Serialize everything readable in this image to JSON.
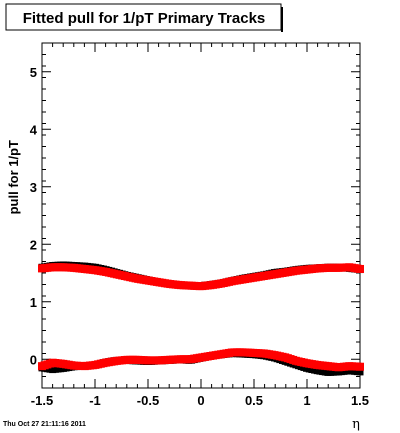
{
  "chart_data": {
    "type": "scatter",
    "title": "Fitted pull for 1/pT  Primary Tracks",
    "ylabel": "pull for 1/pT",
    "xlabel": "η",
    "xlim": [
      -1.5,
      1.5
    ],
    "ylim": [
      -0.5,
      5.5
    ],
    "x_ticks": [
      "-1.5",
      "-1",
      "-0.5",
      "0",
      "0.5",
      "1",
      "1.5"
    ],
    "y_ticks": [
      "0",
      "1",
      "2",
      "3",
      "4",
      "5"
    ],
    "grid": false,
    "legend": "none",
    "series": [
      {
        "color": "#000000",
        "marker": "square",
        "x": [
          -1.5,
          -1.4,
          -1.3,
          -1.2,
          -1.1,
          -1.0,
          -0.9,
          -0.8,
          -0.7,
          -0.6,
          -0.5,
          -0.4,
          -0.3,
          -0.2,
          -0.1,
          0.0,
          0.1,
          0.2,
          0.3,
          0.4,
          0.5,
          0.6,
          0.7,
          0.8,
          0.9,
          1.0,
          1.1,
          1.2,
          1.3,
          1.4,
          1.5
        ],
        "y": [
          1.6,
          1.63,
          1.64,
          1.63,
          1.62,
          1.6,
          1.56,
          1.51,
          1.46,
          1.42,
          1.38,
          1.34,
          1.31,
          1.29,
          1.28,
          1.28,
          1.3,
          1.33,
          1.37,
          1.41,
          1.44,
          1.47,
          1.51,
          1.53,
          1.56,
          1.58,
          1.59,
          1.6,
          1.6,
          1.58,
          1.56
        ]
      },
      {
        "color": "#ff0000",
        "marker": "square",
        "x": [
          -1.5,
          -1.4,
          -1.3,
          -1.2,
          -1.1,
          -1.0,
          -0.9,
          -0.8,
          -0.7,
          -0.6,
          -0.5,
          -0.4,
          -0.3,
          -0.2,
          -0.1,
          0.0,
          0.1,
          0.2,
          0.3,
          0.4,
          0.5,
          0.6,
          0.7,
          0.8,
          0.9,
          1.0,
          1.1,
          1.2,
          1.3,
          1.4,
          1.5
        ],
        "y": [
          1.58,
          1.6,
          1.6,
          1.59,
          1.57,
          1.55,
          1.52,
          1.48,
          1.44,
          1.4,
          1.37,
          1.34,
          1.31,
          1.29,
          1.28,
          1.27,
          1.29,
          1.32,
          1.36,
          1.39,
          1.42,
          1.45,
          1.48,
          1.51,
          1.54,
          1.56,
          1.58,
          1.59,
          1.59,
          1.6,
          1.57
        ]
      },
      {
        "color": "#000000",
        "marker": "square",
        "x": [
          -1.5,
          -1.4,
          -1.3,
          -1.2,
          -1.1,
          -1.0,
          -0.9,
          -0.8,
          -0.7,
          -0.6,
          -0.5,
          -0.4,
          -0.3,
          -0.2,
          -0.1,
          0.0,
          0.1,
          0.2,
          0.3,
          0.4,
          0.5,
          0.6,
          0.7,
          0.8,
          0.9,
          1.0,
          1.1,
          1.2,
          1.3,
          1.4,
          1.5
        ],
        "y": [
          -0.15,
          -0.18,
          -0.16,
          -0.13,
          -0.12,
          -0.1,
          -0.05,
          -0.02,
          -0.02,
          -0.03,
          -0.04,
          -0.03,
          -0.02,
          -0.01,
          -0.02,
          0.02,
          0.06,
          0.08,
          0.1,
          0.09,
          0.08,
          0.06,
          0.02,
          -0.04,
          -0.1,
          -0.16,
          -0.2,
          -0.23,
          -0.22,
          -0.2,
          -0.22
        ]
      },
      {
        "color": "#ff0000",
        "marker": "square",
        "x": [
          -1.5,
          -1.4,
          -1.3,
          -1.2,
          -1.1,
          -1.0,
          -0.9,
          -0.8,
          -0.7,
          -0.6,
          -0.5,
          -0.4,
          -0.3,
          -0.2,
          -0.1,
          0.0,
          0.1,
          0.2,
          0.3,
          0.4,
          0.5,
          0.6,
          0.7,
          0.8,
          0.9,
          1.0,
          1.1,
          1.2,
          1.3,
          1.4,
          1.5
        ],
        "y": [
          -0.12,
          -0.06,
          -0.08,
          -0.11,
          -0.12,
          -0.1,
          -0.06,
          -0.03,
          -0.01,
          -0.01,
          -0.02,
          -0.02,
          -0.01,
          0.0,
          0.0,
          0.03,
          0.06,
          0.09,
          0.12,
          0.12,
          0.11,
          0.1,
          0.07,
          0.03,
          -0.03,
          -0.07,
          -0.1,
          -0.12,
          -0.14,
          -0.12,
          -0.13
        ]
      }
    ]
  },
  "footer": {
    "timestamp": "Thu Oct 27 21:11:16 2011"
  }
}
